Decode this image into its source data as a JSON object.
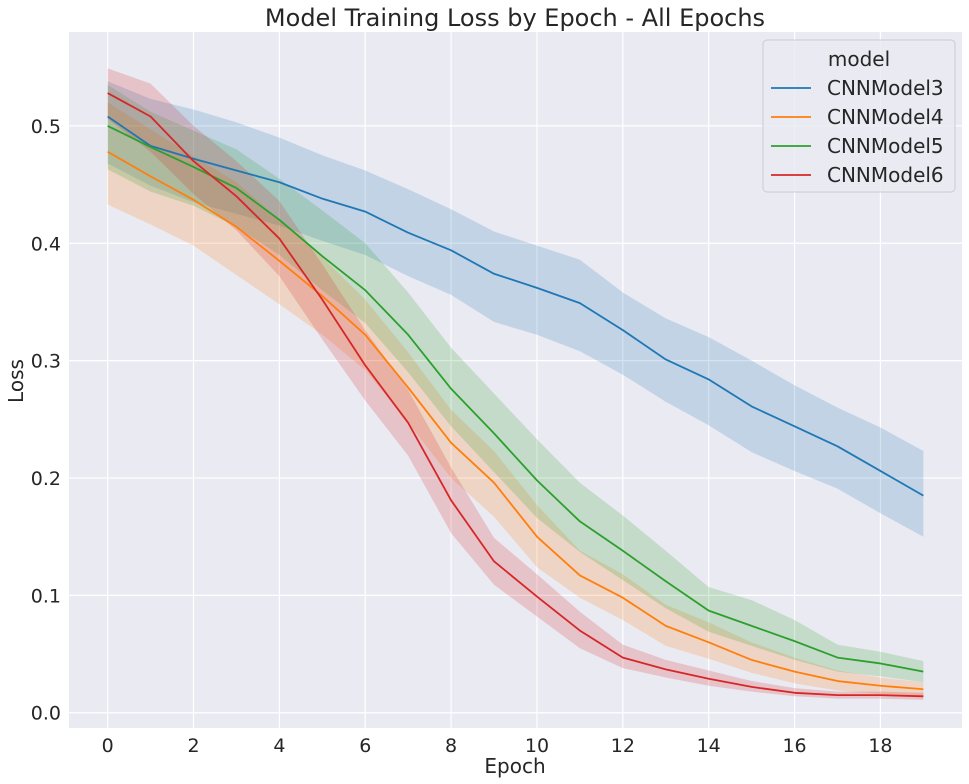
{
  "chart_data": {
    "type": "line",
    "title": "Model Training Loss by Epoch - All Epochs",
    "xlabel": "Epoch",
    "ylabel": "Loss",
    "xlim": [
      -0.9,
      19.9
    ],
    "ylim": [
      -0.013,
      0.58
    ],
    "xticks": [
      0,
      2,
      4,
      6,
      8,
      10,
      12,
      14,
      16,
      18
    ],
    "yticks": [
      0.0,
      0.1,
      0.2,
      0.3,
      0.4,
      0.5
    ],
    "ytick_labels": [
      "0.0",
      "0.1",
      "0.2",
      "0.3",
      "0.4",
      "0.5"
    ],
    "grid": true,
    "background": "#eaeaf2",
    "legend": {
      "title": "model",
      "placement": "top-right"
    },
    "x": [
      0,
      1,
      2,
      3,
      4,
      5,
      6,
      7,
      8,
      9,
      10,
      11,
      12,
      13,
      14,
      15,
      16,
      17,
      18,
      19
    ],
    "series": [
      {
        "name": "CNNModel3",
        "color": "#1f77b4",
        "values": [
          0.508,
          0.483,
          0.472,
          0.462,
          0.452,
          0.438,
          0.427,
          0.409,
          0.394,
          0.374,
          0.362,
          0.349,
          0.326,
          0.301,
          0.284,
          0.261,
          0.244,
          0.227,
          0.206,
          0.185
        ],
        "upper": [
          0.538,
          0.523,
          0.514,
          0.503,
          0.49,
          0.475,
          0.462,
          0.446,
          0.429,
          0.41,
          0.398,
          0.386,
          0.358,
          0.336,
          0.32,
          0.3,
          0.279,
          0.26,
          0.243,
          0.223
        ],
        "lower": [
          0.468,
          0.449,
          0.435,
          0.425,
          0.415,
          0.402,
          0.39,
          0.372,
          0.356,
          0.333,
          0.322,
          0.308,
          0.288,
          0.265,
          0.245,
          0.222,
          0.206,
          0.191,
          0.17,
          0.15
        ]
      },
      {
        "name": "CNNModel4",
        "color": "#ff7f0e",
        "values": [
          0.478,
          0.457,
          0.437,
          0.414,
          0.385,
          0.355,
          0.322,
          0.277,
          0.23,
          0.196,
          0.15,
          0.117,
          0.098,
          0.074,
          0.06,
          0.045,
          0.035,
          0.027,
          0.023,
          0.02
        ],
        "upper": [
          0.52,
          0.497,
          0.474,
          0.452,
          0.42,
          0.388,
          0.352,
          0.307,
          0.258,
          0.223,
          0.177,
          0.138,
          0.118,
          0.092,
          0.077,
          0.06,
          0.047,
          0.036,
          0.03,
          0.026
        ],
        "lower": [
          0.433,
          0.416,
          0.398,
          0.373,
          0.348,
          0.322,
          0.292,
          0.247,
          0.2,
          0.167,
          0.124,
          0.098,
          0.079,
          0.057,
          0.046,
          0.034,
          0.025,
          0.019,
          0.016,
          0.014
        ]
      },
      {
        "name": "CNNModel5",
        "color": "#2ca02c",
        "values": [
          0.5,
          0.482,
          0.465,
          0.447,
          0.42,
          0.389,
          0.36,
          0.322,
          0.276,
          0.238,
          0.198,
          0.163,
          0.138,
          0.112,
          0.087,
          0.074,
          0.061,
          0.047,
          0.042,
          0.035
        ],
        "upper": [
          0.535,
          0.512,
          0.496,
          0.48,
          0.455,
          0.428,
          0.4,
          0.358,
          0.311,
          0.272,
          0.233,
          0.196,
          0.168,
          0.138,
          0.107,
          0.096,
          0.079,
          0.058,
          0.052,
          0.044
        ],
        "lower": [
          0.463,
          0.444,
          0.432,
          0.414,
          0.39,
          0.36,
          0.332,
          0.29,
          0.244,
          0.205,
          0.166,
          0.137,
          0.113,
          0.089,
          0.069,
          0.057,
          0.045,
          0.035,
          0.031,
          0.026
        ]
      },
      {
        "name": "CNNModel6",
        "color": "#d62728",
        "values": [
          0.528,
          0.508,
          0.47,
          0.44,
          0.404,
          0.352,
          0.296,
          0.247,
          0.181,
          0.129,
          0.099,
          0.07,
          0.047,
          0.037,
          0.029,
          0.022,
          0.017,
          0.015,
          0.015,
          0.014
        ],
        "upper": [
          0.549,
          0.536,
          0.5,
          0.47,
          0.436,
          0.382,
          0.326,
          0.275,
          0.209,
          0.149,
          0.118,
          0.086,
          0.058,
          0.045,
          0.036,
          0.027,
          0.021,
          0.018,
          0.018,
          0.017
        ],
        "lower": [
          0.506,
          0.478,
          0.442,
          0.411,
          0.372,
          0.318,
          0.266,
          0.219,
          0.153,
          0.109,
          0.082,
          0.055,
          0.038,
          0.03,
          0.023,
          0.018,
          0.014,
          0.012,
          0.012,
          0.011
        ]
      }
    ]
  }
}
